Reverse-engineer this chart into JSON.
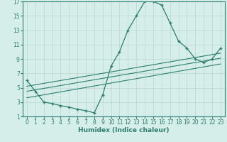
{
  "xlabel": "Humidex (Indice chaleur)",
  "bg_color": "#d5eeea",
  "grid_color": "#b8d8d2",
  "line_color": "#2e7d6e",
  "xlim": [
    -0.5,
    23.5
  ],
  "ylim": [
    1,
    17
  ],
  "xticks": [
    0,
    1,
    2,
    3,
    4,
    5,
    6,
    7,
    8,
    9,
    10,
    11,
    12,
    13,
    14,
    15,
    16,
    17,
    18,
    19,
    20,
    21,
    22,
    23
  ],
  "yticks": [
    1,
    3,
    5,
    7,
    9,
    11,
    13,
    15,
    17
  ],
  "main_x": [
    0,
    1,
    2,
    3,
    4,
    5,
    6,
    7,
    8,
    9,
    10,
    11,
    12,
    13,
    14,
    15,
    16,
    17,
    18,
    19,
    20,
    21,
    22,
    23
  ],
  "main_y": [
    6.0,
    4.5,
    3.0,
    2.8,
    2.5,
    2.3,
    2.0,
    1.8,
    1.5,
    4.0,
    8.0,
    10.0,
    13.0,
    15.0,
    17.0,
    17.0,
    16.5,
    14.0,
    11.5,
    10.5,
    9.0,
    8.5,
    9.0,
    10.5
  ],
  "line1_x": [
    0,
    23
  ],
  "line1_y": [
    5.2,
    9.8
  ],
  "line2_x": [
    0,
    23
  ],
  "line2_y": [
    4.5,
    9.1
  ],
  "line3_x": [
    0,
    23
  ],
  "line3_y": [
    3.6,
    8.3
  ],
  "tick_fontsize": 5.5,
  "label_fontsize": 6.5
}
